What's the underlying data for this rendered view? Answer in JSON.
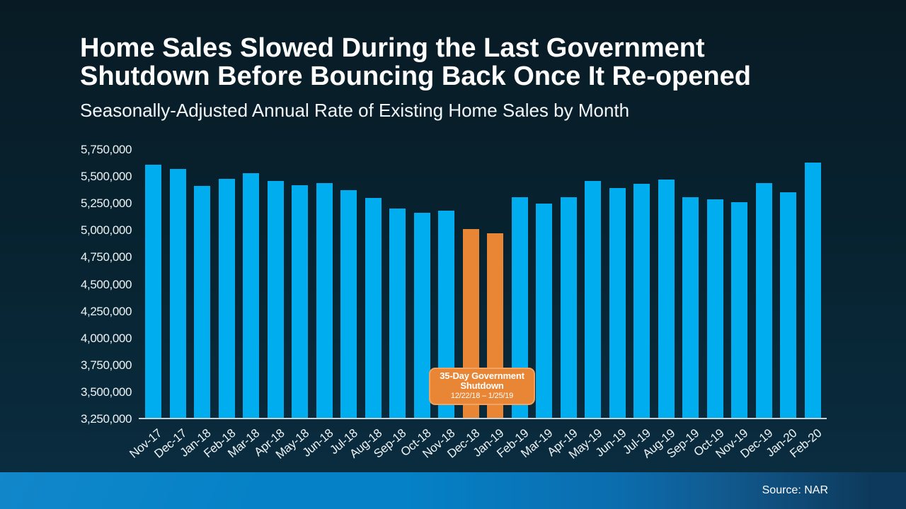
{
  "page": {
    "title_lines": [
      "Home Sales Slowed During the Last Government",
      "Shutdown Before Bouncing Back Once It Re-opened"
    ],
    "subtitle": "Seasonally-Adjusted Annual Rate of Existing Home Sales by Month"
  },
  "footer": {
    "source_label": "Source: NAR"
  },
  "colors": {
    "bar_blue": "#00aeef",
    "bar_orange": "#e98636",
    "annotation_bg": "#e98636",
    "annotation_border": "#f2a261",
    "background_top": "#081b25",
    "background_bottom": "#0a2e42",
    "footer_blue_left": "#0581c7",
    "footer_blue_right": "#0d3a5c",
    "axis_line": "#c9d2d8",
    "text": "#ffffff"
  },
  "chart_data": {
    "type": "bar",
    "title": "Home Sales Slowed During the Last Government Shutdown Before Bouncing Back Once It Re-opened",
    "subtitle": "Seasonally-Adjusted Annual Rate of Existing Home Sales by Month",
    "xlabel": "",
    "ylabel": "",
    "ylim": [
      3250000,
      5750000
    ],
    "ytick_step": 250000,
    "ytick_labels": [
      "5,750,000",
      "5,500,000",
      "5,250,000",
      "5,000,000",
      "4,750,000",
      "4,500,000",
      "4,250,000",
      "4,000,000",
      "3,750,000",
      "3,500,000",
      "3,250,000"
    ],
    "grid": false,
    "legend": false,
    "categories": [
      "Nov-17",
      "Dec-17",
      "Jan-18",
      "Feb-18",
      "Mar-18",
      "Apr-18",
      "May-18",
      "Jun-18",
      "Jul-18",
      "Aug-18",
      "Sep-18",
      "Oct-18",
      "Nov-18",
      "Dec-18",
      "Jan-19",
      "Feb-19",
      "Mar-19",
      "Apr-19",
      "May-19",
      "Jun-19",
      "Jul-19",
      "Aug-19",
      "Sep-19",
      "Oct-19",
      "Nov-19",
      "Dec-19",
      "Jan-20",
      "Feb-20"
    ],
    "values": [
      5600000,
      5560000,
      5400000,
      5470000,
      5520000,
      5450000,
      5410000,
      5430000,
      5360000,
      5290000,
      5190000,
      5150000,
      5170000,
      5000000,
      4960000,
      5300000,
      5240000,
      5300000,
      5450000,
      5380000,
      5420000,
      5460000,
      5300000,
      5280000,
      5250000,
      5430000,
      5340000,
      5620000
    ],
    "highlight_indices": [
      13,
      14
    ],
    "annotation": {
      "line1": "35-Day Government",
      "line2": "Shutdown",
      "dates": "12/22/18 – 1/25/19",
      "applies_to": [
        "Dec-18",
        "Jan-19"
      ]
    }
  }
}
